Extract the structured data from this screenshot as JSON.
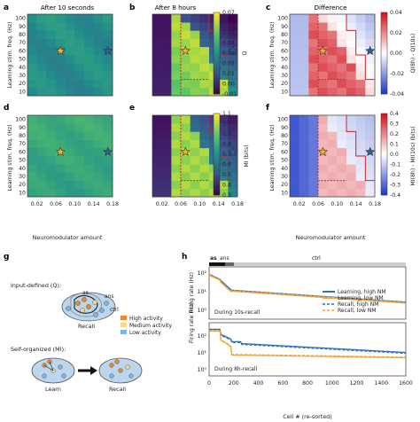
{
  "panels": {
    "a": {
      "label": "a",
      "title": "After 10 seconds"
    },
    "b": {
      "label": "b",
      "title": "After  8 hours"
    },
    "c": {
      "label": "c",
      "title": "Difference"
    },
    "d": {
      "label": "d"
    },
    "e": {
      "label": "e"
    },
    "f": {
      "label": "f"
    },
    "g": {
      "label": "g"
    },
    "h": {
      "label": "h"
    }
  },
  "heatmap_axes": {
    "ylabel": "Learning stim. freq. (Hz)",
    "yticks": [
      "100",
      "90",
      "80",
      "70",
      "60",
      "50",
      "40",
      "30",
      "20",
      "10"
    ],
    "xticks": [
      "0.02",
      "0.06",
      "0.10",
      "0.14",
      "0.18"
    ],
    "xlabel": "Neuromodulator amount"
  },
  "colorbars": {
    "q": {
      "label": "Q",
      "ticks": [
        "0.07",
        "0.06",
        "0.05",
        "0.04",
        "0.03",
        "0.02",
        "0.01",
        "0.00",
        "-0.01"
      ]
    },
    "dq": {
      "label": "Q(8h) - Q(10s)",
      "ticks": [
        "0.04",
        "0.02",
        "0.00",
        "-0.02",
        "-0.04"
      ]
    },
    "mi": {
      "label": "MI (bits)",
      "ticks": [
        "1.1",
        "1.0",
        "0.9",
        "0.8",
        "0.7",
        "0.6",
        "0.5",
        "0.4",
        "0.3"
      ]
    },
    "dmi": {
      "label": "MI(8h) - MI(10s) (bits)",
      "ticks": [
        "0.4",
        "0.3",
        "0.2",
        "0.1",
        "0.0",
        "-0.1",
        "-0.2",
        "-0.3",
        "-0.4"
      ]
    }
  },
  "schematic": {
    "input_title": "Input-defined (Q):",
    "as": "as",
    "ans": "ans",
    "ctrl": "ctrl",
    "recall": "Recall",
    "self_title": "Self-organized (MI):",
    "learn": "Learn",
    "recall2": "Recall",
    "legend": [
      {
        "label": "High activity",
        "color": "#e8892b"
      },
      {
        "label": "Medium activity",
        "color": "#f3d78a"
      },
      {
        "label": "Low activity",
        "color": "#7fb4de"
      }
    ]
  },
  "raster": {
    "bar_labels": {
      "as": "as",
      "ans": "ans",
      "ctrl": "ctrl"
    },
    "ylabel": "Firing rate (Hz)",
    "yticks": [
      "10²",
      "10¹",
      "10⁰"
    ],
    "xlabel": "Cell # (re-sorted)",
    "xticks": [
      "0",
      "200",
      "400",
      "600",
      "800",
      "1000",
      "1200",
      "1400",
      "1600"
    ],
    "top_caption": "During 10s-recall",
    "bottom_caption": "During 8h-recall",
    "legend": [
      {
        "label": "Learning, high NM",
        "style": "solid",
        "color": "#2f6fb8"
      },
      {
        "label": "Learning, low NM",
        "style": "solid",
        "color": "#f0a640"
      },
      {
        "label": "Recall, high NM",
        "style": "dashed",
        "color": "#2f6fb8"
      },
      {
        "label": "Recall, low NM",
        "style": "dashed",
        "color": "#f0a640"
      }
    ]
  },
  "colors": {
    "star_orange": "#f2b035",
    "star_blue": "#2f5fa0",
    "contour": "#c62828",
    "accent_blue": "#2f6fb8",
    "accent_orange": "#f0a640"
  }
}
